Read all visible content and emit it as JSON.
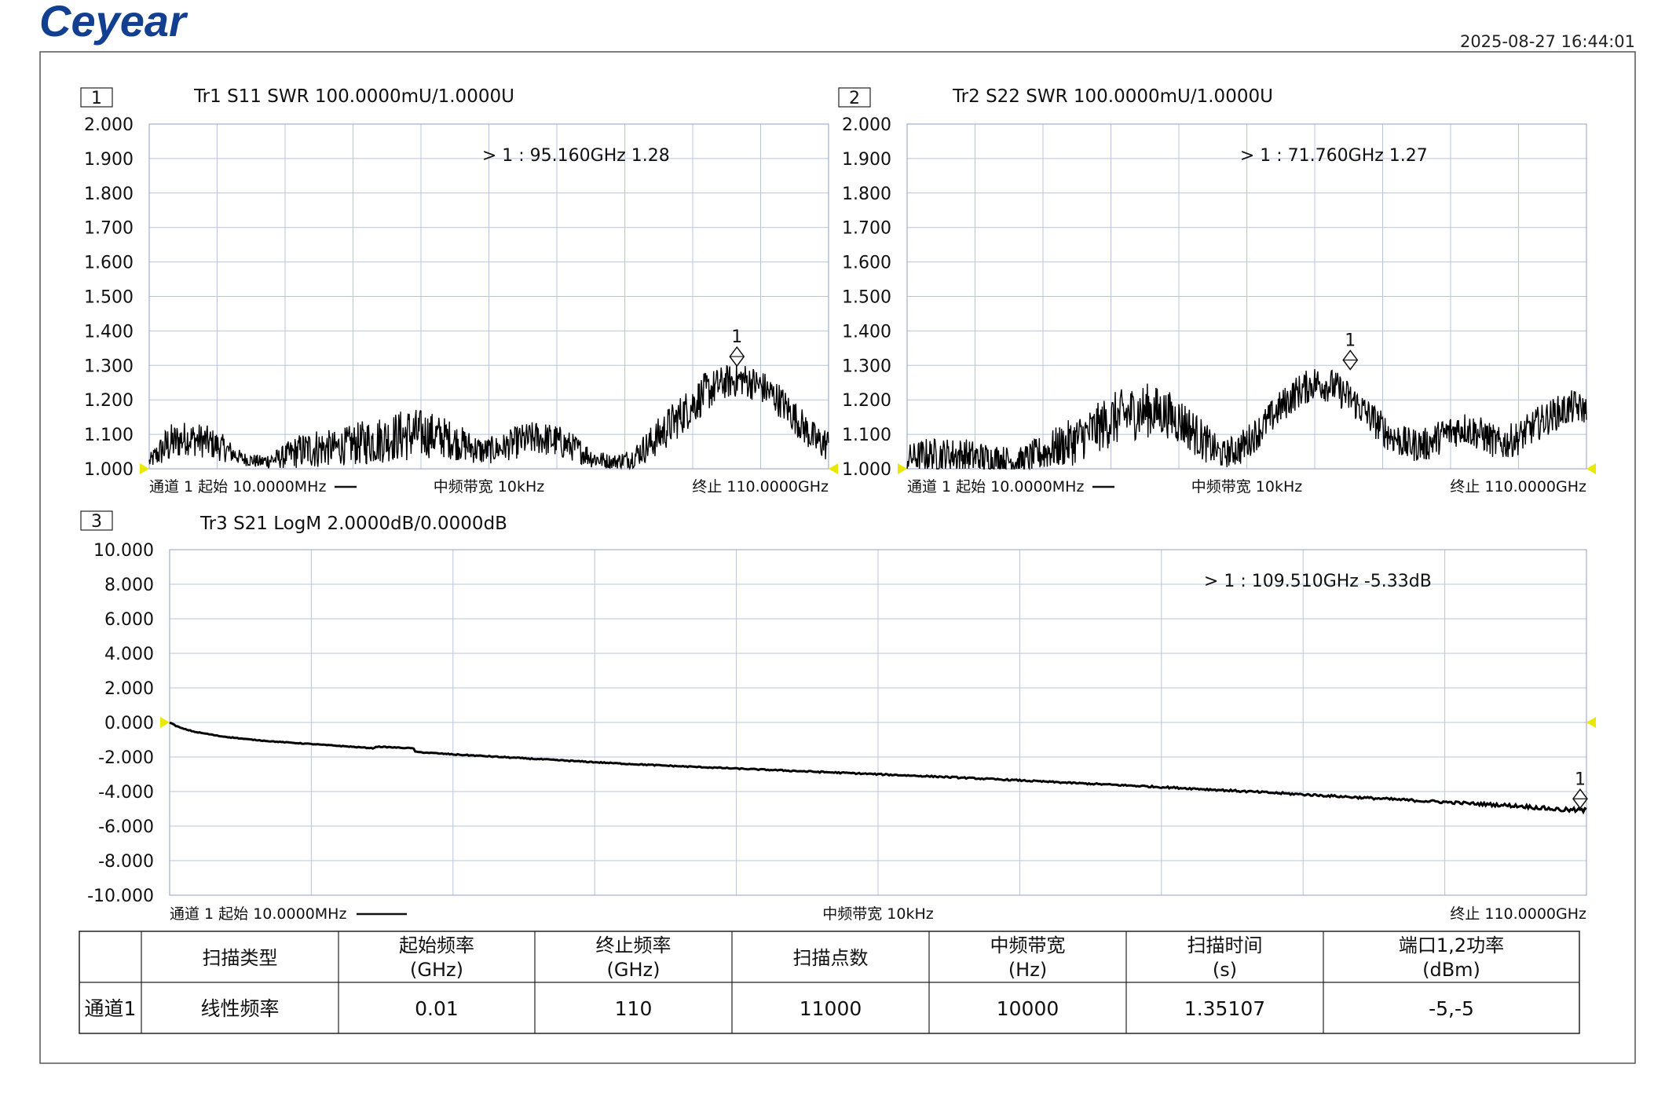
{
  "header": {
    "logo": "Ceyear",
    "timestamp": "2025-08-27 16:44:01"
  },
  "colors": {
    "frame": "#444444",
    "grid": "#b8c4dc",
    "trace": "#000000",
    "edge_marker": "#e8e800",
    "logo": "#123f8f"
  },
  "chart_data": [
    {
      "type": "line",
      "window_number": "1",
      "title": "Tr1 S11 SWR 100.0000mU/1.0000U",
      "x_unit": "GHz",
      "xlim": [
        0.01,
        110
      ],
      "ylim": [
        1.0,
        2.0
      ],
      "yticks": [
        "2.000",
        "1.900",
        "1.800",
        "1.700",
        "1.600",
        "1.500",
        "1.400",
        "1.300",
        "1.200",
        "1.100",
        "1.000"
      ],
      "x_divisions": 10,
      "footer_left": "通道 1 起始 10.0000MHz",
      "footer_mid": "中频带宽 10kHz",
      "footer_right": "终止 110.0000GHz",
      "marker": {
        "label": "1",
        "x": 95.16,
        "y": 1.28,
        "readout": "> 1  : 95.160GHz      1.28"
      },
      "series": [
        {
          "x": [
            0.01,
            3,
            6,
            9,
            12,
            15,
            18,
            21,
            24,
            27,
            30,
            33,
            36,
            39,
            42,
            45,
            48,
            51,
            54,
            57,
            60,
            63,
            66,
            69,
            72,
            75,
            78,
            81,
            84,
            87,
            90,
            93,
            96,
            99,
            102,
            105,
            108,
            110
          ],
          "y": [
            1.02,
            1.07,
            1.09,
            1.08,
            1.06,
            1.03,
            1.02,
            1.03,
            1.05,
            1.06,
            1.06,
            1.07,
            1.08,
            1.09,
            1.1,
            1.1,
            1.09,
            1.07,
            1.05,
            1.06,
            1.08,
            1.09,
            1.08,
            1.06,
            1.03,
            1.02,
            1.03,
            1.07,
            1.12,
            1.17,
            1.22,
            1.25,
            1.26,
            1.24,
            1.2,
            1.14,
            1.08,
            1.07
          ],
          "noise": [
            0.02,
            0.06,
            0.05,
            0.05,
            0.04,
            0.02,
            0.02,
            0.03,
            0.05,
            0.06,
            0.05,
            0.06,
            0.07,
            0.07,
            0.08,
            0.07,
            0.06,
            0.05,
            0.04,
            0.04,
            0.05,
            0.05,
            0.05,
            0.04,
            0.03,
            0.02,
            0.03,
            0.05,
            0.06,
            0.06,
            0.06,
            0.05,
            0.05,
            0.05,
            0.05,
            0.05,
            0.05,
            0.05
          ]
        }
      ]
    },
    {
      "type": "line",
      "window_number": "2",
      "title": "Tr2 S22 SWR 100.0000mU/1.0000U",
      "x_unit": "GHz",
      "xlim": [
        0.01,
        110
      ],
      "ylim": [
        1.0,
        2.0
      ],
      "yticks": [
        "2.000",
        "1.900",
        "1.800",
        "1.700",
        "1.600",
        "1.500",
        "1.400",
        "1.300",
        "1.200",
        "1.100",
        "1.000"
      ],
      "x_divisions": 10,
      "footer_left": "通道 1 起始 10.0000MHz",
      "footer_mid": "中频带宽 10kHz",
      "footer_right": "终止 110.0000GHz",
      "marker": {
        "label": "1",
        "x": 71.76,
        "y": 1.27,
        "readout": "> 1  : 71.760GHz      1.27"
      },
      "series": [
        {
          "x": [
            0.01,
            3,
            6,
            9,
            12,
            15,
            18,
            21,
            24,
            27,
            30,
            33,
            36,
            39,
            42,
            45,
            48,
            51,
            54,
            57,
            60,
            63,
            66,
            69,
            72,
            75,
            78,
            81,
            84,
            87,
            90,
            93,
            96,
            99,
            102,
            105,
            108,
            110
          ],
          "y": [
            1.03,
            1.04,
            1.04,
            1.04,
            1.03,
            1.03,
            1.02,
            1.04,
            1.06,
            1.08,
            1.11,
            1.14,
            1.16,
            1.17,
            1.16,
            1.13,
            1.08,
            1.04,
            1.06,
            1.11,
            1.17,
            1.22,
            1.25,
            1.24,
            1.2,
            1.15,
            1.1,
            1.07,
            1.07,
            1.1,
            1.12,
            1.1,
            1.07,
            1.09,
            1.13,
            1.16,
            1.18,
            1.17
          ],
          "noise": [
            0.04,
            0.05,
            0.05,
            0.05,
            0.05,
            0.04,
            0.04,
            0.05,
            0.06,
            0.07,
            0.07,
            0.08,
            0.08,
            0.08,
            0.07,
            0.07,
            0.06,
            0.04,
            0.05,
            0.05,
            0.05,
            0.05,
            0.05,
            0.05,
            0.05,
            0.05,
            0.05,
            0.05,
            0.05,
            0.05,
            0.05,
            0.05,
            0.05,
            0.05,
            0.05,
            0.05,
            0.05,
            0.04
          ]
        }
      ]
    },
    {
      "type": "line",
      "window_number": "3",
      "title": "Tr3 S21 LogM 2.0000dB/0.0000dB",
      "x_unit": "GHz",
      "xlim": [
        0.01,
        110
      ],
      "ylim": [
        -10,
        10
      ],
      "yticks": [
        "10.000",
        "8.000",
        "6.000",
        "4.000",
        "2.000",
        "0.000",
        "-2.000",
        "-4.000",
        "-6.000",
        "-8.000",
        "-10.000"
      ],
      "x_divisions": 10,
      "footer_left": "通道 1 起始 10.0000MHz",
      "footer_mid": "中频带宽 10kHz",
      "footer_right": "终止 110.0000GHz",
      "marker": {
        "label": "1",
        "x": 109.51,
        "y": -5.33,
        "readout": "> 1  : 109.510GHz    -5.33dB"
      },
      "series": [
        {
          "x": [
            0.01,
            0.5,
            1,
            2,
            4,
            6,
            8,
            10,
            12,
            14,
            16,
            16.01,
            19,
            19.01,
            22,
            25,
            30,
            35,
            40,
            45,
            50,
            55,
            60,
            65,
            70,
            75,
            80,
            85,
            90,
            95,
            100,
            105,
            108,
            110
          ],
          "y": [
            0.0,
            -0.2,
            -0.35,
            -0.55,
            -0.8,
            -0.97,
            -1.1,
            -1.2,
            -1.3,
            -1.4,
            -1.5,
            -1.4,
            -1.5,
            -1.7,
            -1.85,
            -1.97,
            -2.18,
            -2.38,
            -2.55,
            -2.7,
            -2.85,
            -3.0,
            -3.15,
            -3.32,
            -3.5,
            -3.67,
            -3.85,
            -4.05,
            -4.25,
            -4.45,
            -4.65,
            -4.85,
            -5.05,
            -5.1
          ],
          "noise": [
            0.02,
            0.02,
            0.02,
            0.02,
            0.02,
            0.02,
            0.02,
            0.02,
            0.02,
            0.02,
            0.02,
            0.02,
            0.02,
            0.02,
            0.03,
            0.03,
            0.03,
            0.03,
            0.03,
            0.03,
            0.04,
            0.04,
            0.04,
            0.04,
            0.04,
            0.05,
            0.05,
            0.06,
            0.06,
            0.07,
            0.08,
            0.1,
            0.12,
            0.14
          ]
        }
      ]
    }
  ],
  "settings_table": {
    "headers": [
      {
        "line1": "",
        "line2": ""
      },
      {
        "line1": "扫描类型",
        "line2": ""
      },
      {
        "line1": "起始频率",
        "line2": "(GHz)"
      },
      {
        "line1": "终止频率",
        "line2": "(GHz)"
      },
      {
        "line1": "扫描点数",
        "line2": ""
      },
      {
        "line1": "中频带宽",
        "line2": "(Hz)"
      },
      {
        "line1": "扫描时间",
        "line2": "(s)"
      },
      {
        "line1": "端口1,2功率",
        "line2": "(dBm)"
      }
    ],
    "rows": [
      [
        "通道1",
        "线性频率",
        "0.01",
        "110",
        "11000",
        "10000",
        "1.35107",
        "-5,-5"
      ]
    ]
  }
}
